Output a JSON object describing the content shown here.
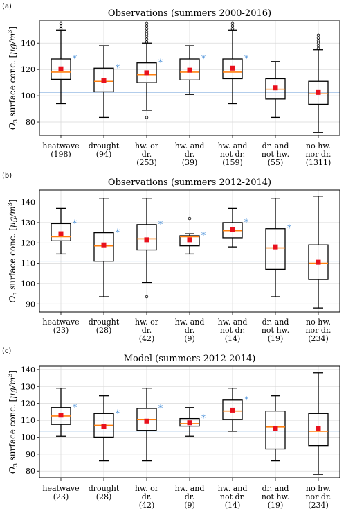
{
  "chart_data": [
    {
      "panel": "(a)",
      "type": "box",
      "title": "Observations (summers 2000-2016)",
      "ylabel": "O3 surface conc. [µg/m3]",
      "ylim": [
        70,
        157
      ],
      "yticks": [
        80,
        100,
        120,
        140
      ],
      "grid": true,
      "reference_line": 102.5,
      "categories": [
        {
          "lines": [
            "heatwave",
            "(198)"
          ],
          "min": 94,
          "q1": 112.5,
          "median": 118,
          "q3": 128,
          "max": 150,
          "mean": 120.5,
          "outliers": [
            151,
            153,
            155
          ],
          "star": true
        },
        {
          "lines": [
            "drought",
            "(94)"
          ],
          "min": 83.5,
          "q1": 103,
          "median": 111,
          "q3": 121,
          "max": 138,
          "mean": 111.5,
          "outliers": [],
          "star": true
        },
        {
          "lines": [
            "hw. or",
            "dr.",
            "(253)"
          ],
          "min": 89,
          "q1": 110,
          "median": 116,
          "q3": 125,
          "max": 140,
          "mean": 117.5,
          "outliers": [
            83.5,
            141,
            143,
            145,
            147,
            149,
            151,
            153,
            155
          ],
          "star": true
        },
        {
          "lines": [
            "hw. and",
            "dr.",
            "(39)"
          ],
          "min": 101,
          "q1": 112,
          "median": 118,
          "q3": 128,
          "max": 138,
          "mean": 119.5,
          "outliers": [],
          "star": true
        },
        {
          "lines": [
            "hw. and",
            "not dr.",
            "(159)"
          ],
          "min": 94,
          "q1": 113,
          "median": 118,
          "q3": 128,
          "max": 150,
          "mean": 121,
          "outliers": [
            151,
            153,
            155
          ],
          "star": true
        },
        {
          "lines": [
            "dr. and",
            "not hw.",
            "(55)"
          ],
          "min": 83.5,
          "q1": 97.5,
          "median": 105,
          "q3": 113,
          "max": 126,
          "mean": 106,
          "outliers": [],
          "star": false
        },
        {
          "lines": [
            "no hw.",
            "nor dr.",
            "(1311)"
          ],
          "min": 72,
          "q1": 93.5,
          "median": 101.5,
          "q3": 111,
          "max": 135,
          "mean": 102.5,
          "outliers": [
            136,
            138,
            140,
            142,
            144,
            146
          ],
          "star": false
        }
      ]
    },
    {
      "panel": "(b)",
      "type": "box",
      "title": "Observations (summers 2012-2014)",
      "ylabel": "O3 surface conc. [µg/m3]",
      "ylim": [
        86,
        146
      ],
      "yticks": [
        90,
        100,
        110,
        120,
        130,
        140
      ],
      "grid": true,
      "reference_line": 111,
      "categories": [
        {
          "lines": [
            "heatwave",
            "(23)"
          ],
          "min": 114.5,
          "q1": 121,
          "median": 123,
          "q3": 129.5,
          "max": 137,
          "mean": 124.5,
          "outliers": [],
          "star": true
        },
        {
          "lines": [
            "drought",
            "(28)"
          ],
          "min": 93.5,
          "q1": 111,
          "median": 118.5,
          "q3": 125,
          "max": 142,
          "mean": 119,
          "outliers": [],
          "star": true
        },
        {
          "lines": [
            "hw. or",
            "dr.",
            "(42)"
          ],
          "min": 100.5,
          "q1": 116.5,
          "median": 122,
          "q3": 129,
          "max": 142,
          "mean": 121.5,
          "outliers": [
            93.5
          ],
          "star": true
        },
        {
          "lines": [
            "hw. and",
            "dr.",
            "(9)"
          ],
          "min": 114.5,
          "q1": 118.5,
          "median": 123,
          "q3": 123.5,
          "max": 124.5,
          "mean": 121.5,
          "outliers": [
            132
          ],
          "star": true
        },
        {
          "lines": [
            "hw. and",
            "not dr.",
            "(14)"
          ],
          "min": 118,
          "q1": 122.5,
          "median": 126,
          "q3": 130,
          "max": 137,
          "mean": 126.5,
          "outliers": [],
          "star": true
        },
        {
          "lines": [
            "dr. and",
            "not hw.",
            "(19)"
          ],
          "min": 93.5,
          "q1": 107,
          "median": 117.5,
          "q3": 127,
          "max": 142,
          "mean": 118,
          "outliers": [],
          "star": true
        },
        {
          "lines": [
            "no hw.",
            "nor dr.",
            "(234)"
          ],
          "min": 88,
          "q1": 102,
          "median": 110,
          "q3": 119,
          "max": 143,
          "mean": 110.5,
          "outliers": [],
          "star": false
        }
      ]
    },
    {
      "panel": "(c)",
      "type": "box",
      "title": "Model (summers 2012-2014)",
      "ylabel": "O3 surface conc. [µg/m3]",
      "ylim": [
        76,
        142
      ],
      "yticks": [
        80,
        90,
        100,
        110,
        120,
        130,
        140
      ],
      "grid": true,
      "reference_line": 103.5,
      "categories": [
        {
          "lines": [
            "heatwave",
            "(23)"
          ],
          "min": 100.5,
          "q1": 107.5,
          "median": 112.5,
          "q3": 117.5,
          "max": 129,
          "mean": 113,
          "outliers": [],
          "star": true
        },
        {
          "lines": [
            "drought",
            "(28)"
          ],
          "min": 86,
          "q1": 100,
          "median": 107,
          "q3": 114,
          "max": 124.5,
          "mean": 106.5,
          "outliers": [],
          "star": true
        },
        {
          "lines": [
            "hw. or",
            "dr.",
            "(42)"
          ],
          "min": 86,
          "q1": 104,
          "median": 110.5,
          "q3": 117,
          "max": 129,
          "mean": 109.5,
          "outliers": [],
          "star": true
        },
        {
          "lines": [
            "hw. and",
            "dr.",
            "(9)"
          ],
          "min": 100.5,
          "q1": 106.5,
          "median": 108,
          "q3": 111,
          "max": 117.5,
          "mean": 108.5,
          "outliers": [],
          "star": true
        },
        {
          "lines": [
            "hw. and",
            "not dr.",
            "(14)"
          ],
          "min": 103.5,
          "q1": 110.5,
          "median": 115.5,
          "q3": 122,
          "max": 129,
          "mean": 116,
          "outliers": [],
          "star": true
        },
        {
          "lines": [
            "dr. and",
            "not hw.",
            "(19)"
          ],
          "min": 86,
          "q1": 93,
          "median": 106,
          "q3": 115.5,
          "max": 124.5,
          "mean": 105,
          "outliers": [],
          "star": false
        },
        {
          "lines": [
            "no hw.",
            "nor dr.",
            "(234)"
          ],
          "min": 78,
          "q1": 95,
          "median": 103.5,
          "q3": 114,
          "max": 138,
          "mean": 105,
          "outliers": [],
          "star": false
        }
      ]
    }
  ],
  "style": {
    "median_color": "#ff7f0e",
    "mean_color": "#e8111d",
    "star_color": "#4a90d9",
    "reference_line_color": "#a8c6e8",
    "grid_color": "#d9d9d9",
    "box_color": "#000000"
  },
  "star_symbol": "*"
}
